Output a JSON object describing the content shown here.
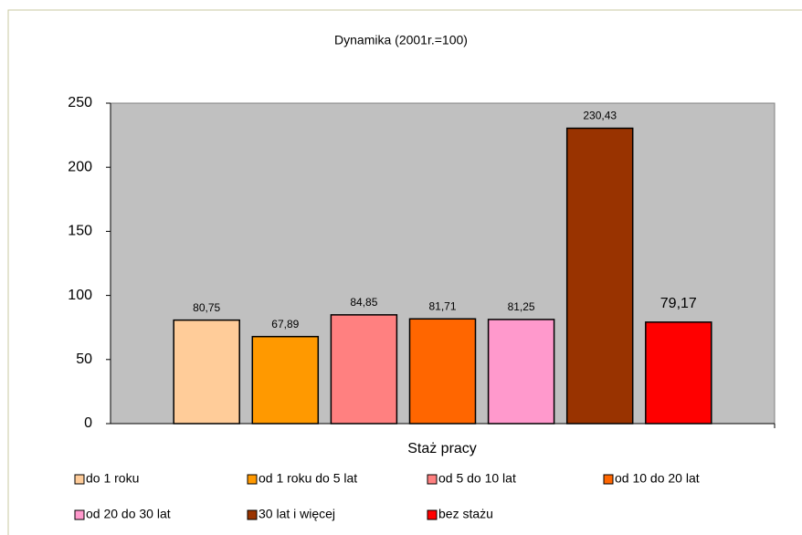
{
  "chart_data": {
    "type": "bar",
    "title": "Dynamika (2001r.=100)",
    "x_label": "Staż pracy",
    "categories": [
      null
    ],
    "series": [
      {
        "name": "do 1 roku",
        "color": "#ffcc99",
        "values": [
          80.75
        ],
        "value_labels": [
          "80,75"
        ]
      },
      {
        "name": "od 1 roku do 5 lat",
        "color": "#ff9900",
        "values": [
          67.89
        ],
        "value_labels": [
          "67,89"
        ]
      },
      {
        "name": "od 5 do 10 lat",
        "color": "#ff8080",
        "values": [
          84.85
        ],
        "value_labels": [
          "84,85"
        ]
      },
      {
        "name": "od 10 do 20 lat",
        "color": "#ff6600",
        "values": [
          81.71
        ],
        "value_labels": [
          "81,71"
        ]
      },
      {
        "name": "od 20 do 30 lat",
        "color": "#ff99cc",
        "values": [
          81.25
        ],
        "value_labels": [
          "81,25"
        ]
      },
      {
        "name": "30 lat i więcej",
        "color": "#993300",
        "values": [
          230.43
        ],
        "value_labels": [
          "230,43"
        ]
      },
      {
        "name": "bez stażu",
        "color": "#ff0000",
        "values": [
          79.17
        ],
        "value_labels": [
          "79,17"
        ]
      }
    ],
    "ylim": [
      0,
      250
    ],
    "yticks": [
      0,
      50,
      100,
      150,
      200,
      250
    ],
    "grid": false,
    "legend": "bottom"
  }
}
